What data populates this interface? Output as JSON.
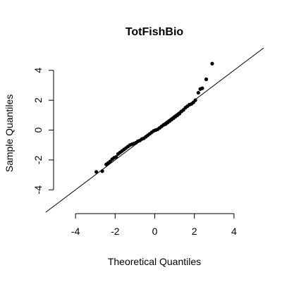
{
  "chart_data": {
    "type": "scatter",
    "title": "TotFishBio",
    "xlabel": "Theoretical Quantiles",
    "ylabel": "Sample Quantiles",
    "xlim": [
      -5.5,
      5.5
    ],
    "ylim": [
      -5.5,
      5.5
    ],
    "x_ticks": [
      -4,
      -2,
      0,
      2,
      4
    ],
    "y_ticks": [
      -4,
      -2,
      0,
      2,
      4
    ],
    "x_tick_labels": [
      "-4",
      "-2",
      "0",
      "2",
      "4"
    ],
    "y_tick_labels": [
      "-4",
      "-2",
      "0",
      "2",
      "4"
    ],
    "grid": false,
    "reference_line": {
      "intercept": 0,
      "slope": 1
    },
    "points": {
      "x": [
        -2.95,
        -2.65,
        -2.45,
        -2.35,
        -2.25,
        -2.15,
        -2.05,
        -1.95,
        -1.85,
        -1.75,
        -1.65,
        -1.55,
        -1.45,
        -1.35,
        -1.25,
        -1.15,
        -1.05,
        -0.95,
        -0.85,
        -0.75,
        -0.65,
        -0.55,
        -0.45,
        -0.35,
        -0.25,
        -0.15,
        -0.05,
        0.05,
        0.15,
        0.25,
        0.35,
        0.45,
        0.55,
        0.65,
        0.75,
        0.85,
        0.95,
        1.05,
        1.15,
        1.25,
        1.35,
        1.45,
        1.55,
        1.65,
        1.75,
        1.85,
        1.95,
        2.05,
        2.2,
        2.3,
        2.4,
        2.6,
        2.9
      ],
      "y": [
        -2.8,
        -2.75,
        -2.3,
        -2.2,
        -2.1,
        -1.95,
        -1.85,
        -1.8,
        -1.6,
        -1.5,
        -1.4,
        -1.3,
        -1.2,
        -1.1,
        -1.0,
        -0.95,
        -0.9,
        -0.85,
        -0.75,
        -0.7,
        -0.6,
        -0.55,
        -0.45,
        -0.35,
        -0.25,
        -0.15,
        -0.05,
        0.0,
        0.05,
        0.15,
        0.25,
        0.35,
        0.4,
        0.5,
        0.6,
        0.7,
        0.8,
        0.9,
        1.0,
        1.1,
        1.25,
        1.35,
        1.5,
        1.6,
        1.7,
        1.75,
        1.85,
        2.0,
        2.5,
        2.75,
        2.8,
        3.4,
        4.45
      ]
    },
    "colors": {
      "points": "#000000",
      "line": "#000000",
      "axis": "#000000",
      "background": "#ffffff"
    }
  }
}
